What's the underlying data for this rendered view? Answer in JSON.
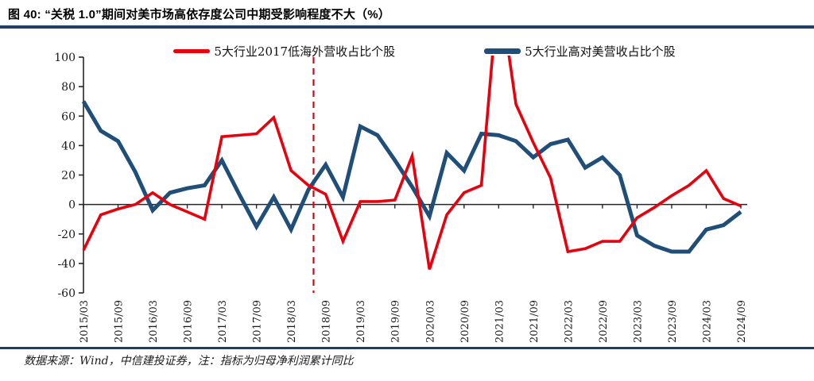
{
  "figure": {
    "title": "图 40:  “关税 1.0”期间对美市场高依存度公司中期受影响程度不大（%）",
    "source_note": "数据来源：Wind，中信建投证券，注：指标为归母净利润累计同比"
  },
  "colors": {
    "accent_rule": "#1f4064",
    "axis": "#262626",
    "red_series": "#e8000d",
    "blue_series": "#1f4e79"
  },
  "chart_data": {
    "type": "line",
    "x": [
      "2015/03",
      "2015/06",
      "2015/09",
      "2015/12",
      "2016/03",
      "2016/06",
      "2016/09",
      "2016/12",
      "2017/03",
      "2017/06",
      "2017/09",
      "2017/12",
      "2018/03",
      "2018/06",
      "2018/09",
      "2018/12",
      "2019/03",
      "2019/06",
      "2019/09",
      "2019/12",
      "2020/03",
      "2020/06",
      "2020/09",
      "2020/12",
      "2021/03",
      "2021/06",
      "2021/09",
      "2021/12",
      "2022/03",
      "2022/06",
      "2022/09",
      "2022/12",
      "2023/03",
      "2023/06",
      "2023/09",
      "2023/12",
      "2024/03",
      "2024/06",
      "2024/09"
    ],
    "x_shown_tick_labels": [
      "2015/03",
      "2015/09",
      "2016/03",
      "2016/09",
      "2017/03",
      "2017/09",
      "2018/03",
      "2018/09",
      "2019/03",
      "2019/09",
      "2020/03",
      "2020/09",
      "2021/03",
      "2021/09",
      "2022/03",
      "2022/09",
      "2023/03",
      "2023/09",
      "2024/03",
      "2024/09"
    ],
    "series": [
      {
        "name": "5大行业2017低海外营收占比个股",
        "color": "#e8000d",
        "values": [
          -31,
          -7,
          -3,
          0,
          8,
          0,
          -5,
          -10,
          46,
          47,
          48,
          59,
          23,
          13,
          7,
          -25,
          2,
          2,
          3,
          33,
          -44,
          -7,
          8,
          13,
          150,
          68,
          42,
          18,
          -32,
          -30,
          -25,
          -25,
          -9,
          -2,
          6,
          13,
          23,
          4,
          -1
        ]
      },
      {
        "name": "5大行业高对美营收占比个股",
        "color": "#1f4e79",
        "values": [
          70,
          50,
          43,
          22,
          -4,
          8,
          11,
          13,
          30,
          7,
          -15,
          5,
          -17,
          10,
          27,
          5,
          53,
          47,
          30,
          12,
          -8,
          35,
          23,
          48,
          47,
          43,
          32,
          41,
          44,
          25,
          32,
          20,
          -21,
          -28,
          -32,
          -32,
          -17,
          -14,
          -5
        ]
      }
    ],
    "ylim": [
      -60,
      100
    ],
    "y_ticks": [
      100,
      80,
      60,
      40,
      20,
      0,
      -20,
      -40,
      -60
    ],
    "grid": false,
    "legend_position": "top",
    "vline": {
      "nearest_label": "2018/06",
      "at_index": 13.3,
      "color": "#e8000d",
      "style": "dashed"
    },
    "clipping_note": "红线2021/03处峰值超出坐标轴上限100，在图中被截断"
  }
}
